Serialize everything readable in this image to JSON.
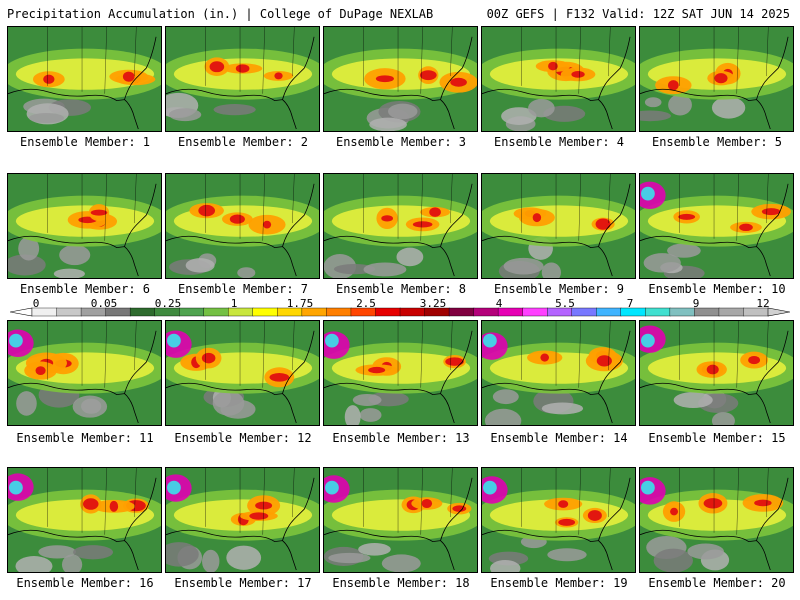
{
  "header": {
    "left_title": "Precipitation Accumulation (in.) | College of DuPage NEXLAB",
    "right_title": "00Z GEFS | F132 Valid: 12Z SAT JUN 14 2025"
  },
  "members": [
    "Ensemble Member: 1",
    "Ensemble Member: 2",
    "Ensemble Member: 3",
    "Ensemble Member: 4",
    "Ensemble Member: 5",
    "Ensemble Member: 6",
    "Ensemble Member: 7",
    "Ensemble Member: 8",
    "Ensemble Member: 9",
    "Ensemble Member: 10",
    "Ensemble Member: 11",
    "Ensemble Member: 12",
    "Ensemble Member: 13",
    "Ensemble Member: 14",
    "Ensemble Member: 15",
    "Ensemble Member: 16",
    "Ensemble Member: 17",
    "Ensemble Member: 18",
    "Ensemble Member: 19",
    "Ensemble Member: 20"
  ],
  "colorbar": {
    "tick_labels": [
      "0",
      "0.05",
      "0.25",
      "1",
      "1.75",
      "2.5",
      "3.25",
      "4",
      "5.5",
      "7",
      "9",
      "12"
    ],
    "colors": [
      "#f0f0f0",
      "#c8c8c8",
      "#a0a0a0",
      "#787878",
      "#2e6b2e",
      "#3f8a3f",
      "#4fa34f",
      "#74c043",
      "#c8e63c",
      "#ffff00",
      "#ffd700",
      "#ffa500",
      "#ff7f00",
      "#ff4500",
      "#e60000",
      "#c80000",
      "#a00000",
      "#800040",
      "#b4007a",
      "#e600b4",
      "#ff40ff",
      "#b464ff",
      "#7878ff",
      "#40b4ff",
      "#00e6ff",
      "#40e0d0",
      "#80c0c0",
      "#909090",
      "#a8a8a8",
      "#c0c0c0"
    ]
  }
}
